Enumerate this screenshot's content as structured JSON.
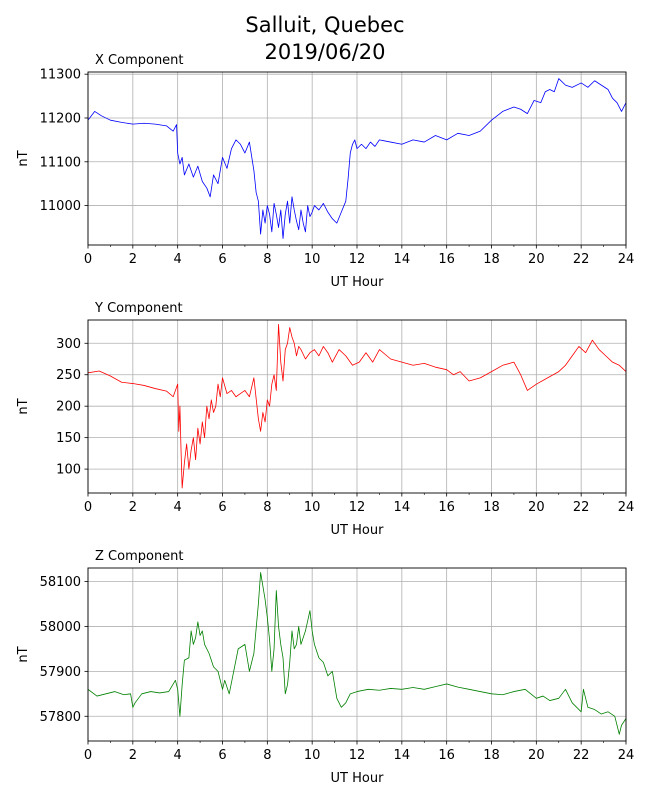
{
  "title_line1": "Salluit, Quebec",
  "title_line2": "2019/06/20",
  "chart_data": [
    {
      "type": "line",
      "title": "X Component",
      "xlabel": "UT Hour",
      "ylabel": "nT",
      "color": "#0000ff",
      "xlim": [
        0,
        24
      ],
      "ylim": [
        10910,
        11305
      ],
      "xticks": [
        0,
        2,
        4,
        6,
        8,
        10,
        12,
        14,
        16,
        18,
        20,
        22,
        24
      ],
      "yticks": [
        11000,
        11100,
        11200,
        11300
      ],
      "grid": true,
      "series": [
        {
          "x": [
            0,
            0.3,
            0.6,
            1,
            1.5,
            2,
            2.5,
            3,
            3.5,
            3.8,
            3.95,
            4.0,
            4.1,
            4.2,
            4.3,
            4.5,
            4.7,
            4.9,
            5.1,
            5.3,
            5.45,
            5.6,
            5.8,
            6.0,
            6.2,
            6.4,
            6.6,
            6.8,
            7.0,
            7.2,
            7.4,
            7.5,
            7.6,
            7.7,
            7.8,
            7.9,
            8.0,
            8.1,
            8.2,
            8.3,
            8.4,
            8.5,
            8.6,
            8.7,
            8.8,
            8.9,
            9.0,
            9.1,
            9.2,
            9.3,
            9.4,
            9.5,
            9.6,
            9.7,
            9.8,
            9.9,
            10.0,
            10.1,
            10.3,
            10.5,
            10.7,
            10.9,
            11.1,
            11.3,
            11.5,
            11.6,
            11.7,
            11.8,
            11.9,
            12.0,
            12.2,
            12.4,
            12.6,
            12.8,
            13,
            13.5,
            14,
            14.5,
            15,
            15.5,
            16,
            16.5,
            17,
            17.5,
            18,
            18.5,
            19,
            19.3,
            19.6,
            19.9,
            20.2,
            20.4,
            20.6,
            20.8,
            21,
            21.3,
            21.6,
            22,
            22.3,
            22.6,
            22.9,
            23.2,
            23.4,
            23.6,
            23.8,
            24
          ],
          "values": [
            11195,
            11215,
            11205,
            11195,
            11190,
            11186,
            11188,
            11186,
            11182,
            11170,
            11185,
            11120,
            11095,
            11110,
            11070,
            11095,
            11065,
            11090,
            11055,
            11040,
            11020,
            11070,
            11050,
            11110,
            11085,
            11130,
            11150,
            11140,
            11120,
            11145,
            11080,
            11030,
            11010,
            10935,
            10990,
            10960,
            11000,
            10980,
            10940,
            11005,
            10980,
            10950,
            10990,
            10925,
            10980,
            11010,
            10960,
            11020,
            10990,
            10965,
            10945,
            10990,
            10960,
            10940,
            11000,
            10975,
            10985,
            11000,
            10990,
            11005,
            10985,
            10970,
            10960,
            10985,
            11010,
            11060,
            11120,
            11140,
            11150,
            11130,
            11140,
            11130,
            11145,
            11135,
            11150,
            11145,
            11140,
            11150,
            11145,
            11160,
            11150,
            11165,
            11160,
            11170,
            11195,
            11215,
            11225,
            11220,
            11210,
            11240,
            11235,
            11260,
            11265,
            11260,
            11290,
            11275,
            11270,
            11280,
            11270,
            11285,
            11275,
            11265,
            11245,
            11235,
            11215,
            11235
          ]
        }
      ]
    },
    {
      "type": "line",
      "title": "Y Component",
      "xlabel": "UT Hour",
      "ylabel": "nT",
      "color": "#ff0000",
      "xlim": [
        0,
        24
      ],
      "ylim": [
        62,
        337
      ],
      "xticks": [
        0,
        2,
        4,
        6,
        8,
        10,
        12,
        14,
        16,
        18,
        20,
        22,
        24
      ],
      "yticks": [
        100,
        150,
        200,
        250,
        300
      ],
      "grid": true,
      "series": [
        {
          "x": [
            0,
            0.5,
            1,
            1.5,
            2,
            2.5,
            3,
            3.5,
            3.8,
            4.0,
            4.05,
            4.1,
            4.15,
            4.2,
            4.3,
            4.4,
            4.5,
            4.6,
            4.7,
            4.8,
            4.9,
            5.0,
            5.1,
            5.2,
            5.3,
            5.4,
            5.5,
            5.6,
            5.7,
            5.8,
            5.9,
            6.0,
            6.2,
            6.4,
            6.6,
            6.8,
            7.0,
            7.2,
            7.4,
            7.6,
            7.7,
            7.8,
            7.9,
            8.0,
            8.1,
            8.2,
            8.3,
            8.4,
            8.5,
            8.6,
            8.7,
            8.8,
            8.9,
            9.0,
            9.1,
            9.2,
            9.3,
            9.4,
            9.5,
            9.7,
            9.9,
            10.1,
            10.3,
            10.5,
            10.7,
            10.9,
            11.2,
            11.5,
            11.8,
            12.1,
            12.4,
            12.7,
            13,
            13.5,
            14,
            14.5,
            15,
            15.5,
            16,
            16.3,
            16.6,
            17,
            17.5,
            18,
            18.5,
            19,
            19.3,
            19.6,
            20,
            20.5,
            21,
            21.3,
            21.6,
            21.9,
            22.2,
            22.5,
            22.8,
            23.1,
            23.4,
            23.7,
            24
          ],
          "values": [
            253,
            256,
            248,
            238,
            236,
            233,
            228,
            224,
            215,
            235,
            160,
            200,
            130,
            70,
            110,
            140,
            100,
            130,
            150,
            115,
            165,
            140,
            175,
            150,
            200,
            180,
            210,
            190,
            200,
            235,
            215,
            245,
            220,
            225,
            215,
            220,
            225,
            215,
            245,
            180,
            160,
            190,
            175,
            210,
            200,
            235,
            250,
            225,
            330,
            270,
            240,
            290,
            300,
            325,
            310,
            300,
            280,
            295,
            290,
            275,
            285,
            290,
            280,
            295,
            285,
            270,
            290,
            280,
            265,
            270,
            285,
            270,
            290,
            275,
            270,
            265,
            268,
            262,
            258,
            250,
            255,
            240,
            245,
            255,
            265,
            270,
            250,
            225,
            235,
            245,
            255,
            265,
            280,
            295,
            285,
            305,
            290,
            280,
            270,
            265,
            255
          ]
        }
      ]
    },
    {
      "type": "line",
      "title": "Z Component",
      "xlabel": "UT Hour",
      "ylabel": "nT",
      "color": "#008000",
      "xlim": [
        0,
        24
      ],
      "ylim": [
        57745,
        58130
      ],
      "xticks": [
        0,
        2,
        4,
        6,
        8,
        10,
        12,
        14,
        16,
        18,
        20,
        22,
        24
      ],
      "yticks": [
        57800,
        57900,
        58000,
        58100
      ],
      "grid": true,
      "series": [
        {
          "x": [
            0,
            0.4,
            0.8,
            1.2,
            1.6,
            1.9,
            2.0,
            2.1,
            2.4,
            2.8,
            3.2,
            3.6,
            3.9,
            4.0,
            4.1,
            4.2,
            4.3,
            4.5,
            4.6,
            4.7,
            4.8,
            4.9,
            5.0,
            5.1,
            5.2,
            5.4,
            5.6,
            5.8,
            6.0,
            6.1,
            6.3,
            6.5,
            6.7,
            7.0,
            7.2,
            7.4,
            7.6,
            7.7,
            7.8,
            7.9,
            8.0,
            8.1,
            8.2,
            8.3,
            8.4,
            8.5,
            8.6,
            8.7,
            8.8,
            8.9,
            9.0,
            9.1,
            9.2,
            9.3,
            9.4,
            9.5,
            9.7,
            9.9,
            10.0,
            10.1,
            10.3,
            10.5,
            10.7,
            10.9,
            11.1,
            11.3,
            11.5,
            11.7,
            12.0,
            12.5,
            13,
            13.5,
            14,
            14.5,
            15,
            15.5,
            16,
            16.5,
            17,
            17.5,
            18,
            18.5,
            19,
            19.5,
            20,
            20.3,
            20.6,
            21,
            21.3,
            21.6,
            22,
            22.1,
            22.3,
            22.6,
            22.9,
            23.2,
            23.5,
            23.7,
            23.8,
            24
          ],
          "values": [
            57860,
            57845,
            57850,
            57855,
            57848,
            57850,
            57820,
            57830,
            57850,
            57855,
            57852,
            57855,
            57880,
            57860,
            57800,
            57870,
            57925,
            57930,
            57990,
            57960,
            57975,
            58010,
            57980,
            57990,
            57960,
            57940,
            57910,
            57900,
            57860,
            57880,
            57850,
            57900,
            57950,
            57960,
            57900,
            57940,
            58050,
            58120,
            58090,
            58060,
            58020,
            57970,
            57900,
            57950,
            58080,
            58000,
            57960,
            57930,
            57850,
            57870,
            57920,
            57990,
            57950,
            57960,
            58000,
            57960,
            57990,
            58035,
            57990,
            57960,
            57930,
            57920,
            57890,
            57900,
            57840,
            57820,
            57830,
            57850,
            57855,
            57860,
            57858,
            57862,
            57860,
            57864,
            57860,
            57866,
            57872,
            57865,
            57860,
            57855,
            57850,
            57848,
            57855,
            57860,
            57840,
            57845,
            57835,
            57840,
            57860,
            57830,
            57810,
            57860,
            57820,
            57815,
            57805,
            57810,
            57800,
            57760,
            57780,
            57795
          ]
        }
      ]
    }
  ]
}
